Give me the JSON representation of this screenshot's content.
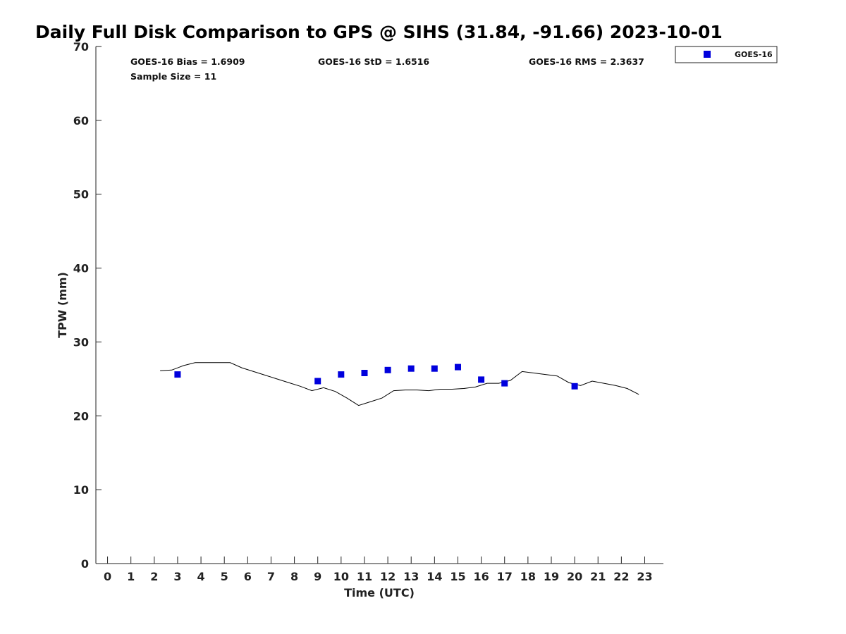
{
  "chart_data": {
    "type": "scatter",
    "title": "Daily Full Disk Comparison to GPS @ SIHS (31.84, -91.66) 2023-10-01",
    "xlabel": "Time (UTC)",
    "ylabel": "TPW (mm)",
    "xlim": [
      -0.5,
      23.8
    ],
    "ylim": [
      0,
      70
    ],
    "x_ticks": [
      "0",
      "1",
      "2",
      "3",
      "4",
      "5",
      "6",
      "7",
      "8",
      "9",
      "10",
      "11",
      "12",
      "13",
      "14",
      "15",
      "16",
      "17",
      "18",
      "19",
      "20",
      "21",
      "22",
      "23"
    ],
    "y_ticks": [
      "0",
      "10",
      "20",
      "30",
      "40",
      "50",
      "60",
      "70"
    ],
    "grid": false,
    "legend_position": "top-right",
    "stats": {
      "bias": "GOES-16 Bias = 1.6909",
      "std": "GOES-16 StD = 1.6516",
      "rms": "GOES-16 RMS = 2.3637",
      "sample": "Sample Size = 11"
    },
    "series": [
      {
        "name": "GOES-16",
        "kind": "scatter",
        "marker": "square",
        "color": "#0000dd",
        "x": [
          3,
          9,
          10,
          11,
          12,
          13,
          14,
          15,
          16,
          17,
          20
        ],
        "y": [
          25.6,
          24.7,
          25.6,
          25.8,
          26.2,
          26.4,
          26.4,
          26.6,
          24.9,
          24.4,
          24.0
        ]
      },
      {
        "kind": "line",
        "color": "#000000",
        "x": [
          2.25,
          2.75,
          3.25,
          3.75,
          4.25,
          4.75,
          5.25,
          5.75,
          6.25,
          6.75,
          7.25,
          7.75,
          8.25,
          8.75,
          9.25,
          9.75,
          10.25,
          10.75,
          11.25,
          11.75,
          12.25,
          12.75,
          13.25,
          13.75,
          14.25,
          14.75,
          15.25,
          15.75,
          16.25,
          16.75,
          17.25,
          17.75,
          18.25,
          18.75,
          19.25,
          19.75,
          20.25,
          20.75,
          21.25,
          21.75,
          22.25,
          22.75
        ],
        "y": [
          26.1,
          26.2,
          26.8,
          27.2,
          27.2,
          27.2,
          27.2,
          26.5,
          26.0,
          25.5,
          25.0,
          24.5,
          24.0,
          23.4,
          23.8,
          23.3,
          22.4,
          21.4,
          21.9,
          22.4,
          23.4,
          23.5,
          23.5,
          23.4,
          23.6,
          23.6,
          23.7,
          23.9,
          24.4,
          24.4,
          24.8,
          26.0,
          25.8,
          25.6,
          25.4,
          24.5,
          24.1,
          24.7,
          24.4,
          24.1,
          23.7,
          22.9
        ]
      }
    ]
  }
}
